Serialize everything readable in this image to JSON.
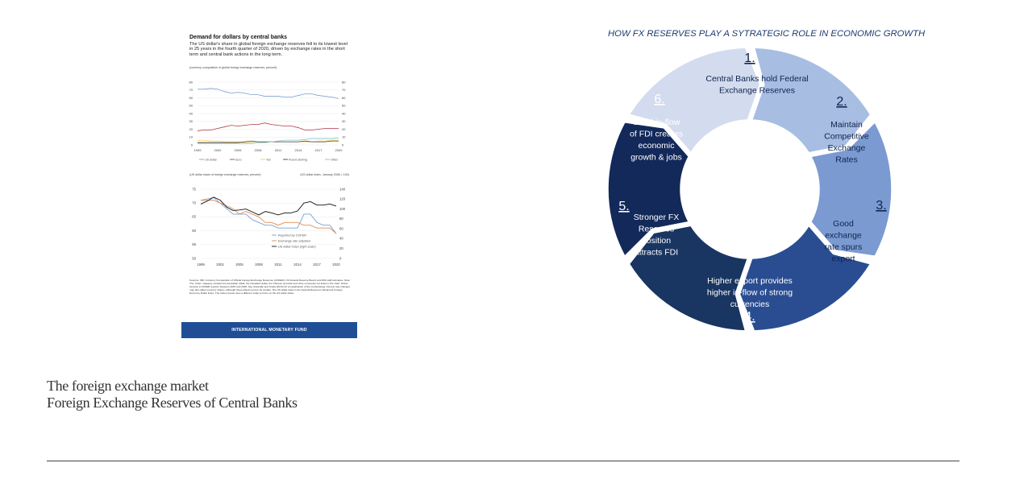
{
  "imf_figure": {
    "title": "Demand for dollars by central banks",
    "subtitle": "The US dollar's share in global foreign exchange reserves fell to its lowest level in 25 years in the fourth quarter of 2020, driven by exchange rates in the short term and central bank actions in the long term.",
    "unit_note": "(currency composition of global foreign exchange reserves, percent)",
    "top_chart": {
      "y_ticks": [
        "80",
        "70",
        "60",
        "50",
        "40",
        "30",
        "20",
        "10",
        "0"
      ],
      "x_ticks": [
        "1999",
        "2002",
        "2005",
        "2008",
        "2011",
        "2014",
        "2017",
        "2020"
      ],
      "legend": [
        "US dollar",
        "Euro",
        "Yen",
        "Pound sterling",
        "Other"
      ]
    },
    "bottom_chart": {
      "left_label": "(US dollar share of foreign exchange reserves, percent)",
      "right_label": "(US dollar index, January 2006 = 100)",
      "y_left_ticks": [
        "75",
        "70",
        "65",
        "60",
        "55",
        "50"
      ],
      "y_right_ticks": [
        "140",
        "120",
        "100",
        "80",
        "60",
        "40",
        "20",
        "0"
      ],
      "x_ticks": [
        "1999",
        "2002",
        "2005",
        "2008",
        "2011",
        "2014",
        "2017",
        "2020"
      ],
      "legend": [
        "Reported by COFER",
        "Exchange rate adjusted",
        "US dollar index (right scale)"
      ]
    },
    "notes": "Sources: IMF, Currency Composition of Official Foreign Exchange Reserves (COFER); US Federal Reserve Board; and IMF staff estimates. Note: The \"other\" category contains the Australian dollar, the Canadian dollar, the Chinese renminbi and other currencies not listed in the chart. China became a COFER reporter between 2015 and 2018. See Arslanalp and Tsuda (2015) for an application of the methodology. Interest rate changes may also affect currency shares, although these effects tend to be smaller. The US dollar index is the Federal Reserve's Advanced Foreign Economy Dollar Index. The bottom panel uses a different scale to focus on the US dollar share.",
    "footer": "INTERNATIONAL MONETARY FUND"
  },
  "chart_data": [
    {
      "type": "line",
      "x": [
        1999,
        2000,
        2001,
        2002,
        2003,
        2004,
        2005,
        2006,
        2007,
        2008,
        2009,
        2010,
        2011,
        2012,
        2013,
        2014,
        2015,
        2016,
        2017,
        2018,
        2019,
        2020
      ],
      "series": [
        {
          "name": "US dollar",
          "values": [
            71,
            71,
            72,
            71,
            68,
            66,
            67,
            66,
            64,
            64,
            62,
            62,
            62,
            61,
            61,
            63,
            65,
            65,
            63,
            62,
            61,
            59
          ]
        },
        {
          "name": "Euro",
          "values": [
            18,
            19,
            19,
            21,
            23,
            25,
            24,
            25,
            26,
            26,
            28,
            26,
            25,
            24,
            24,
            22,
            19,
            19,
            20,
            21,
            21,
            21
          ]
        },
        {
          "name": "Yen",
          "values": [
            6,
            6,
            5,
            5,
            4,
            4,
            4,
            3,
            3,
            3,
            3,
            4,
            4,
            4,
            4,
            4,
            4,
            4,
            5,
            5,
            6,
            6
          ]
        },
        {
          "name": "Pound sterling",
          "values": [
            3,
            3,
            3,
            3,
            3,
            3,
            3,
            4,
            5,
            4,
            4,
            4,
            4,
            4,
            4,
            4,
            5,
            4,
            4,
            4,
            5,
            5
          ]
        },
        {
          "name": "Other",
          "values": [
            2,
            2,
            2,
            2,
            2,
            2,
            2,
            2,
            2,
            3,
            3,
            4,
            5,
            6,
            6,
            6,
            7,
            8,
            8,
            8,
            8,
            9
          ]
        }
      ],
      "ylim": [
        0,
        80
      ],
      "colors": {
        "US dollar": "#7aa0cf",
        "Euro": "#b23a48",
        "Yen": "#f2d14a",
        "Pound sterling": "#5a3a2a",
        "Other": "#7fc6d8"
      }
    },
    {
      "type": "line",
      "x": [
        1999,
        2000,
        2001,
        2002,
        2003,
        2004,
        2005,
        2006,
        2007,
        2008,
        2009,
        2010,
        2011,
        2012,
        2013,
        2014,
        2015,
        2016,
        2017,
        2018,
        2019,
        2020
      ],
      "series": [
        {
          "name": "Reported by COFER",
          "values": [
            71,
            71.5,
            72,
            70,
            68,
            66,
            66,
            66,
            64,
            63,
            62,
            62,
            61,
            61,
            61,
            61,
            66,
            66,
            63,
            62,
            62,
            59
          ]
        },
        {
          "name": "Exchange rate adjusted",
          "values": [
            71,
            71,
            71,
            70,
            69,
            68,
            66,
            67,
            66,
            65,
            63,
            63,
            62,
            63,
            63,
            63,
            62,
            62,
            61,
            61,
            61,
            59
          ]
        },
        {
          "name": "US dollar index (right scale)",
          "axis": "right",
          "values": [
            110,
            116,
            124,
            118,
            104,
            97,
            98,
            100,
            94,
            88,
            95,
            92,
            88,
            92,
            92,
            96,
            112,
            115,
            108,
            108,
            110,
            106
          ]
        }
      ],
      "ylim_left": [
        50,
        75
      ],
      "ylim_right": [
        0,
        140
      ],
      "colors": {
        "Reported by COFER": "#7aa0cf",
        "Exchange rate adjusted": "#e38b55",
        "US dollar index (right scale)": "#111111"
      }
    }
  ],
  "right_panel": {
    "title": "HOW FX RESERVES PLAY A SYTRATEGIC ROLE IN ECONOMIC GROWTH",
    "segments": [
      {
        "number": "1.",
        "lines": [
          "Central Banks hold Federal",
          "Exchange Reserves"
        ],
        "color": "#d3dcee"
      },
      {
        "number": "2.",
        "lines": [
          "Maintain",
          "Competitive",
          "Exchange",
          "Rates"
        ],
        "color": "#a7bde2"
      },
      {
        "number": "3.",
        "lines": [
          "Good",
          "exchange",
          "rate spurs",
          "export"
        ],
        "color": "#7b9ad1"
      },
      {
        "number": "4.",
        "lines": [
          "Higher export provides",
          "higher in-flow of strong",
          "currencies"
        ],
        "color": "#2a4d91"
      },
      {
        "number": "5.",
        "lines": [
          "Stronger FX",
          "Reserves",
          "position",
          "attracts FDI"
        ],
        "color": "#193562"
      },
      {
        "number": "6.",
        "lines": [
          "Good in-flow",
          "of FDI creates",
          "economic",
          "growth & jobs"
        ],
        "color": "#13295a"
      }
    ]
  },
  "slide": {
    "title_line1": "The foreign exchange market",
    "title_line2": "Foreign Exchange Reserves of Central Banks"
  }
}
